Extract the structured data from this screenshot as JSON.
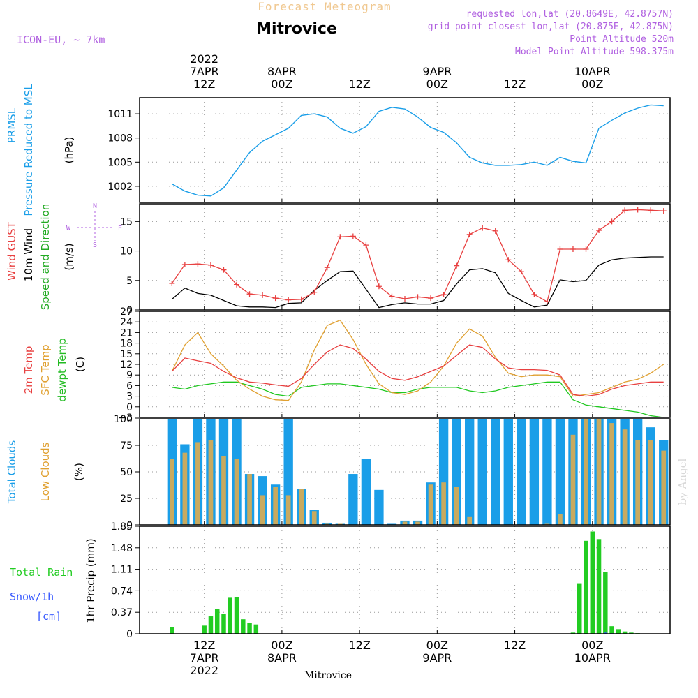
{
  "header": {
    "title": "Mitrovice",
    "supertitle": "Forecast Meteogram",
    "model": "ICON-EU, ~ 7km",
    "requested": "requested lon,lat (20.8649E, 42.8757N)",
    "grid_point": "grid point closest lon,lat (20.875E, 42.875N)",
    "point_altitude": "Point Altitude 520m",
    "model_altitude": "Model Point Altitude 598.375m"
  },
  "time_axis": {
    "top_ticks": [
      {
        "hour": 12,
        "lines": [
          "2022",
          "7APR",
          "12Z"
        ]
      },
      {
        "hour": 24,
        "lines": [
          "8APR",
          "00Z"
        ]
      },
      {
        "hour": 36,
        "lines": [
          "12Z"
        ]
      },
      {
        "hour": 48,
        "lines": [
          "9APR",
          "00Z"
        ]
      },
      {
        "hour": 60,
        "lines": [
          "12Z"
        ]
      },
      {
        "hour": 72,
        "lines": [
          "10APR",
          "00Z"
        ]
      }
    ],
    "bottom_ticks": [
      {
        "hour": 12,
        "lines": [
          "12Z",
          "7APR",
          "2022"
        ]
      },
      {
        "hour": 24,
        "lines": [
          "00Z",
          "8APR"
        ]
      },
      {
        "hour": 36,
        "lines": [
          "12Z"
        ]
      },
      {
        "hour": 48,
        "lines": [
          "00Z",
          "9APR"
        ]
      },
      {
        "hour": 60,
        "lines": [
          "12Z"
        ]
      },
      {
        "hour": 72,
        "lines": [
          "00Z",
          "10APR"
        ]
      }
    ],
    "bottom_caption": "Mitrovice"
  },
  "panel_labels": {
    "pressure": {
      "line1": "PRMSL",
      "line2": "Pressure Reduced to MSL",
      "unit": "(hPa)"
    },
    "wind": {
      "gust": "Wind GUST",
      "wind10": "10m Wind",
      "speed_dir": "Speed and Direction",
      "unit": "(m/s)",
      "compass_n": "N",
      "compass_s": "S",
      "compass_w": "W",
      "compass_e": "E"
    },
    "temp": {
      "t2m": "2m Temp",
      "sfc": "SFC Temp",
      "dewpt": "dewpt Temp",
      "unit": "(C)"
    },
    "clouds": {
      "total": "Total Clouds",
      "low": "Low Clouds",
      "unit": "(%)"
    },
    "precip": {
      "rain": "Total Rain",
      "snow": "Snow/1h",
      "cm": "[cm]",
      "axis": "1hr Precip (mm)"
    }
  },
  "watermark": "by Angel",
  "colors": {
    "pressure": "#1a9ee8",
    "gust": "#e84040",
    "wind10": "#000000",
    "t2m": "#e84040",
    "sfc": "#e0a030",
    "dewpt": "#20c820",
    "total_clouds": "#1a9ee8",
    "low_clouds": "#c8aa60",
    "rain": "#22cc22",
    "snow": "#3355ff",
    "label_purple": "#b060e0",
    "title_orange": "#f0c890"
  },
  "chart_data": [
    {
      "type": "line",
      "name": "pressure",
      "x_unit": "hours from 7APR 00Z",
      "ylim": [
        1000,
        1013
      ],
      "yticks": [
        1002,
        1005,
        1008,
        1011
      ],
      "x": [
        7,
        9,
        11,
        13,
        15,
        17,
        19,
        21,
        23,
        25,
        27,
        29,
        31,
        33,
        35,
        37,
        39,
        41,
        43,
        45,
        47,
        49,
        51,
        53,
        55,
        57,
        59,
        61,
        63,
        65,
        67,
        69,
        71,
        73,
        75,
        77,
        79,
        81,
        83
      ],
      "series": [
        {
          "values": [
            1002.3,
            1001.4,
            1000.9,
            1000.8,
            1001.8,
            1004.0,
            1006.2,
            1007.6,
            1008.4,
            1009.2,
            1010.8,
            1011.0,
            1010.6,
            1009.2,
            1008.6,
            1009.4,
            1011.3,
            1011.8,
            1011.6,
            1010.6,
            1009.3,
            1008.7,
            1007.4,
            1005.6,
            1004.9,
            1004.6,
            1004.6,
            1004.7,
            1005.0,
            1004.6,
            1005.6,
            1005.1,
            1004.9,
            1009.2,
            1010.2,
            1011.1,
            1011.7,
            1012.1,
            1012.0
          ]
        }
      ]
    },
    {
      "type": "line",
      "name": "wind",
      "x_unit": "hours from 7APR 00Z",
      "ylim": [
        0,
        18
      ],
      "yticks": [
        0,
        5,
        10,
        15
      ],
      "x": [
        7,
        9,
        11,
        13,
        15,
        17,
        19,
        21,
        23,
        25,
        27,
        29,
        31,
        33,
        35,
        37,
        39,
        41,
        43,
        45,
        47,
        49,
        51,
        53,
        55,
        57,
        59,
        61,
        63,
        65,
        67,
        69,
        71,
        73,
        75,
        77,
        79,
        81,
        83
      ],
      "series": [
        {
          "name": "Wind GUST",
          "values": [
            4.5,
            7.7,
            7.8,
            7.6,
            6.8,
            4.3,
            2.7,
            2.5,
            2.0,
            1.7,
            1.8,
            3.0,
            7.2,
            12.4,
            12.5,
            11.0,
            4.0,
            2.3,
            1.9,
            2.2,
            2.0,
            2.6,
            7.5,
            12.8,
            13.9,
            13.4,
            8.5,
            6.5,
            2.6,
            1.4,
            10.3,
            10.3,
            10.3,
            13.5,
            15.0,
            16.9,
            17.0,
            16.9,
            16.8
          ]
        },
        {
          "name": "10m Wind",
          "values": [
            1.8,
            3.7,
            2.8,
            2.5,
            1.6,
            0.7,
            0.5,
            0.5,
            0.4,
            1.1,
            1.2,
            3.3,
            5.0,
            6.5,
            6.6,
            3.5,
            0.4,
            0.9,
            1.2,
            1.0,
            1.0,
            1.6,
            4.4,
            6.8,
            7.0,
            6.3,
            2.8,
            1.6,
            0.5,
            0.8,
            5.1,
            4.8,
            5.0,
            7.6,
            8.5,
            8.8,
            8.9,
            9.0,
            9.0
          ]
        }
      ]
    },
    {
      "type": "line",
      "name": "temperature",
      "x_unit": "hours from 7APR 00Z",
      "ylim": [
        -3,
        27
      ],
      "yticks": [
        -3,
        0,
        3,
        6,
        9,
        12,
        15,
        18,
        21,
        24,
        27
      ],
      "x": [
        7,
        9,
        11,
        13,
        15,
        17,
        19,
        21,
        23,
        25,
        27,
        29,
        31,
        33,
        35,
        37,
        39,
        41,
        43,
        45,
        47,
        49,
        51,
        53,
        55,
        57,
        59,
        61,
        63,
        65,
        67,
        69,
        71,
        73,
        75,
        77,
        79,
        81,
        83
      ],
      "series": [
        {
          "name": "2m Temp",
          "values": [
            10.0,
            13.8,
            13.0,
            12.3,
            10.0,
            8.2,
            7.0,
            6.7,
            6.2,
            5.8,
            8.0,
            12.0,
            15.5,
            17.5,
            16.5,
            13.5,
            10.0,
            8.0,
            7.5,
            8.5,
            10.0,
            11.5,
            14.5,
            17.5,
            16.8,
            13.5,
            11.0,
            10.5,
            10.5,
            10.3,
            9.0,
            3.5,
            3.0,
            3.5,
            5.0,
            6.0,
            6.5,
            7.0,
            7.0
          ]
        },
        {
          "name": "SFC Temp",
          "values": [
            10.0,
            17.5,
            21.0,
            15.0,
            11.5,
            7.5,
            5.0,
            3.0,
            2.0,
            1.8,
            7.0,
            16.0,
            23.0,
            24.5,
            19.0,
            12.0,
            6.5,
            4.0,
            3.5,
            4.5,
            7.0,
            11.5,
            18.0,
            22.0,
            20.0,
            14.0,
            9.5,
            8.5,
            9.0,
            9.0,
            8.5,
            3.0,
            3.5,
            4.0,
            5.5,
            7.0,
            7.8,
            9.5,
            12.0
          ]
        },
        {
          "name": "dewpt Temp",
          "values": [
            5.5,
            5.0,
            6.0,
            6.5,
            7.0,
            7.0,
            6.0,
            5.0,
            3.5,
            3.0,
            5.5,
            6.0,
            6.5,
            6.5,
            6.0,
            5.5,
            5.0,
            4.0,
            4.0,
            5.0,
            5.5,
            5.5,
            5.5,
            4.5,
            4.0,
            4.5,
            5.5,
            6.0,
            6.5,
            7.0,
            7.0,
            2.0,
            0.5,
            0.0,
            -0.5,
            -1.0,
            -1.5,
            -2.5,
            -3.0
          ]
        }
      ]
    },
    {
      "type": "bar",
      "name": "clouds",
      "x_unit": "hours from 7APR 00Z",
      "ylim": [
        0,
        100
      ],
      "yticks": [
        0,
        25,
        50,
        75,
        100
      ],
      "x": [
        7,
        9,
        11,
        13,
        15,
        17,
        19,
        21,
        23,
        25,
        27,
        29,
        31,
        33,
        35,
        37,
        39,
        41,
        43,
        45,
        47,
        49,
        51,
        53,
        55,
        57,
        59,
        61,
        63,
        65,
        67,
        69,
        71,
        73,
        75,
        77,
        79,
        81,
        83
      ],
      "series": [
        {
          "name": "Total Clouds",
          "values": [
            100,
            76,
            100,
            100,
            100,
            100,
            48,
            46,
            38,
            100,
            34,
            14,
            2,
            1,
            48,
            62,
            33,
            1,
            4,
            4,
            40,
            100,
            100,
            100,
            100,
            100,
            100,
            100,
            100,
            100,
            100,
            100,
            100,
            100,
            100,
            100,
            100,
            92,
            80
          ]
        },
        {
          "name": "Low Clouds",
          "values": [
            62,
            68,
            78,
            80,
            65,
            62,
            48,
            28,
            36,
            28,
            34,
            13,
            1,
            1,
            0,
            0,
            0,
            0,
            3,
            3,
            38,
            40,
            36,
            8,
            0,
            0,
            0,
            0,
            0,
            1,
            10,
            85,
            100,
            100,
            96,
            90,
            80,
            80,
            70
          ]
        }
      ]
    },
    {
      "type": "bar",
      "name": "precipitation",
      "x_unit": "hours from 7APR 00Z",
      "ylim": [
        0,
        1.85
      ],
      "yticks": [
        0,
        0.37,
        0.74,
        1.11,
        1.48,
        1.85
      ],
      "x": [
        7,
        8,
        9,
        10,
        11,
        12,
        13,
        14,
        15,
        16,
        17,
        18,
        19,
        20,
        21,
        22,
        69,
        70,
        71,
        72,
        73,
        74,
        75,
        76,
        77,
        78,
        79,
        80,
        81
      ],
      "series": [
        {
          "name": "Total Rain",
          "values": [
            0.12,
            0,
            0,
            0,
            0,
            0.14,
            0.3,
            0.43,
            0.34,
            0.62,
            0.63,
            0.25,
            0.19,
            0.16,
            0,
            0,
            0.02,
            0.87,
            1.6,
            1.76,
            1.63,
            1.06,
            0.13,
            0.08,
            0.04,
            0.02,
            0.01,
            0,
            0
          ]
        },
        {
          "name": "Snow/1h",
          "values": [
            0,
            0,
            0,
            0,
            0,
            0,
            0,
            0,
            0,
            0,
            0,
            0,
            0,
            0,
            0,
            0,
            0,
            0,
            0,
            0,
            0,
            0.02,
            0.01,
            0,
            0,
            0,
            0,
            0,
            0
          ]
        }
      ]
    }
  ]
}
